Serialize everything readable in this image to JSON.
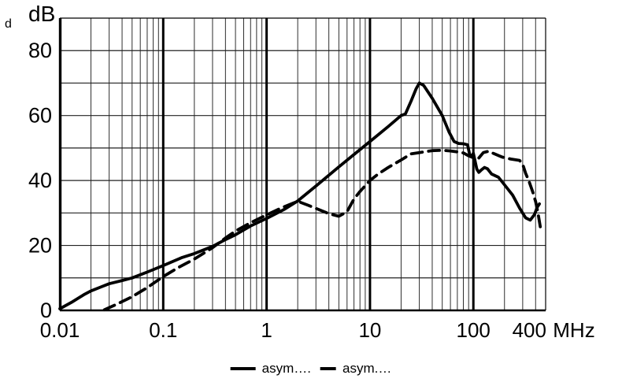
{
  "labels": {
    "margin_d": "d",
    "y_unit": "dB",
    "x_unit": "MHz"
  },
  "legend": {
    "items": [
      {
        "label": "asym….",
        "style": "solid"
      },
      {
        "label": "asym.…",
        "style": "dashed"
      }
    ]
  },
  "chart_data": {
    "type": "line",
    "title": "",
    "xlabel": "MHz",
    "ylabel": "dB",
    "x_scale": "log",
    "xlim": [
      0.01,
      500
    ],
    "ylim": [
      0,
      90
    ],
    "grid": "log decades with minor lines, horizontal every 10 dB",
    "legend_position": "bottom-center",
    "y_ticks": [
      0,
      20,
      40,
      60,
      80
    ],
    "y_grid_step": 10,
    "x_ticks": [
      {
        "f": 0.01,
        "label": "0.01"
      },
      {
        "f": 0.1,
        "label": "0.1"
      },
      {
        "f": 1,
        "label": "1"
      },
      {
        "f": 10,
        "label": "10"
      },
      {
        "f": 100,
        "label": "100"
      },
      {
        "f": 400,
        "label": "400"
      }
    ],
    "x_decades": [
      0.01,
      0.1,
      1,
      10,
      100
    ],
    "series": [
      {
        "name": "asym….",
        "style": "solid",
        "points": [
          [
            0.01,
            0.5
          ],
          [
            0.013,
            2.5
          ],
          [
            0.017,
            4.8
          ],
          [
            0.02,
            6
          ],
          [
            0.03,
            8.2
          ],
          [
            0.04,
            9.2
          ],
          [
            0.05,
            10
          ],
          [
            0.07,
            11.8
          ],
          [
            0.1,
            13.8
          ],
          [
            0.15,
            16.2
          ],
          [
            0.2,
            17.5
          ],
          [
            0.3,
            19.7
          ],
          [
            0.4,
            21.8
          ],
          [
            0.5,
            23.3
          ],
          [
            0.7,
            26
          ],
          [
            1,
            28.3
          ],
          [
            1.5,
            31.2
          ],
          [
            2,
            33.7
          ],
          [
            3,
            38.3
          ],
          [
            5,
            44.2
          ],
          [
            7,
            48
          ],
          [
            10,
            52
          ],
          [
            15,
            56.6
          ],
          [
            20,
            60
          ],
          [
            22,
            60.5
          ],
          [
            25,
            64.5
          ],
          [
            28,
            68.3
          ],
          [
            30,
            70
          ],
          [
            33,
            69.3
          ],
          [
            36,
            67.5
          ],
          [
            40,
            65.3
          ],
          [
            50,
            60
          ],
          [
            58,
            55
          ],
          [
            65,
            52
          ],
          [
            72,
            51.4
          ],
          [
            80,
            51.3
          ],
          [
            88,
            51
          ],
          [
            92,
            48
          ],
          [
            97,
            47.5
          ],
          [
            100,
            48.4
          ],
          [
            103,
            46.5
          ],
          [
            108,
            43.5
          ],
          [
            113,
            42.5
          ],
          [
            120,
            43.3
          ],
          [
            128,
            44
          ],
          [
            137,
            43.6
          ],
          [
            150,
            42
          ],
          [
            175,
            41
          ],
          [
            200,
            38.7
          ],
          [
            240,
            35.5
          ],
          [
            280,
            31.5
          ],
          [
            320,
            28.5
          ],
          [
            355,
            27.8
          ],
          [
            390,
            29.5
          ],
          [
            415,
            31.8
          ],
          [
            435,
            32.8
          ]
        ]
      },
      {
        "name": "asym.…",
        "style": "dashed",
        "points": [
          [
            0.027,
            0.2
          ],
          [
            0.035,
            1.8
          ],
          [
            0.05,
            4.2
          ],
          [
            0.07,
            7
          ],
          [
            0.1,
            10.4
          ],
          [
            0.14,
            13.2
          ],
          [
            0.2,
            15.8
          ],
          [
            0.3,
            19.3
          ],
          [
            0.4,
            22.3
          ],
          [
            0.5,
            24.4
          ],
          [
            0.7,
            27
          ],
          [
            1,
            29.4
          ],
          [
            1.4,
            31.6
          ],
          [
            2,
            33.6
          ],
          [
            2.5,
            32.4
          ],
          [
            3,
            31.4
          ],
          [
            4,
            29.8
          ],
          [
            5,
            29
          ],
          [
            6,
            30.4
          ],
          [
            7,
            34.3
          ],
          [
            8,
            36.6
          ],
          [
            10,
            40
          ],
          [
            12,
            42
          ],
          [
            15,
            44
          ],
          [
            20,
            46.3
          ],
          [
            25,
            48.2
          ],
          [
            30,
            48.6
          ],
          [
            40,
            49.2
          ],
          [
            50,
            49.3
          ],
          [
            60,
            49.1
          ],
          [
            70,
            48.8
          ],
          [
            80,
            48.5
          ],
          [
            90,
            47.6
          ],
          [
            100,
            47
          ],
          [
            112,
            46.8
          ],
          [
            125,
            48.6
          ],
          [
            140,
            49
          ],
          [
            160,
            48.2
          ],
          [
            190,
            47.2
          ],
          [
            230,
            46.6
          ],
          [
            280,
            46.2
          ],
          [
            300,
            45
          ],
          [
            320,
            42.2
          ],
          [
            345,
            39.8
          ],
          [
            375,
            36.5
          ],
          [
            400,
            33.5
          ],
          [
            420,
            30.3
          ],
          [
            440,
            26.5
          ],
          [
            452,
            24.3
          ]
        ]
      }
    ]
  },
  "plot_geometry_note": "black curves on white, bold decade gridlines, thin minor log gridlines"
}
